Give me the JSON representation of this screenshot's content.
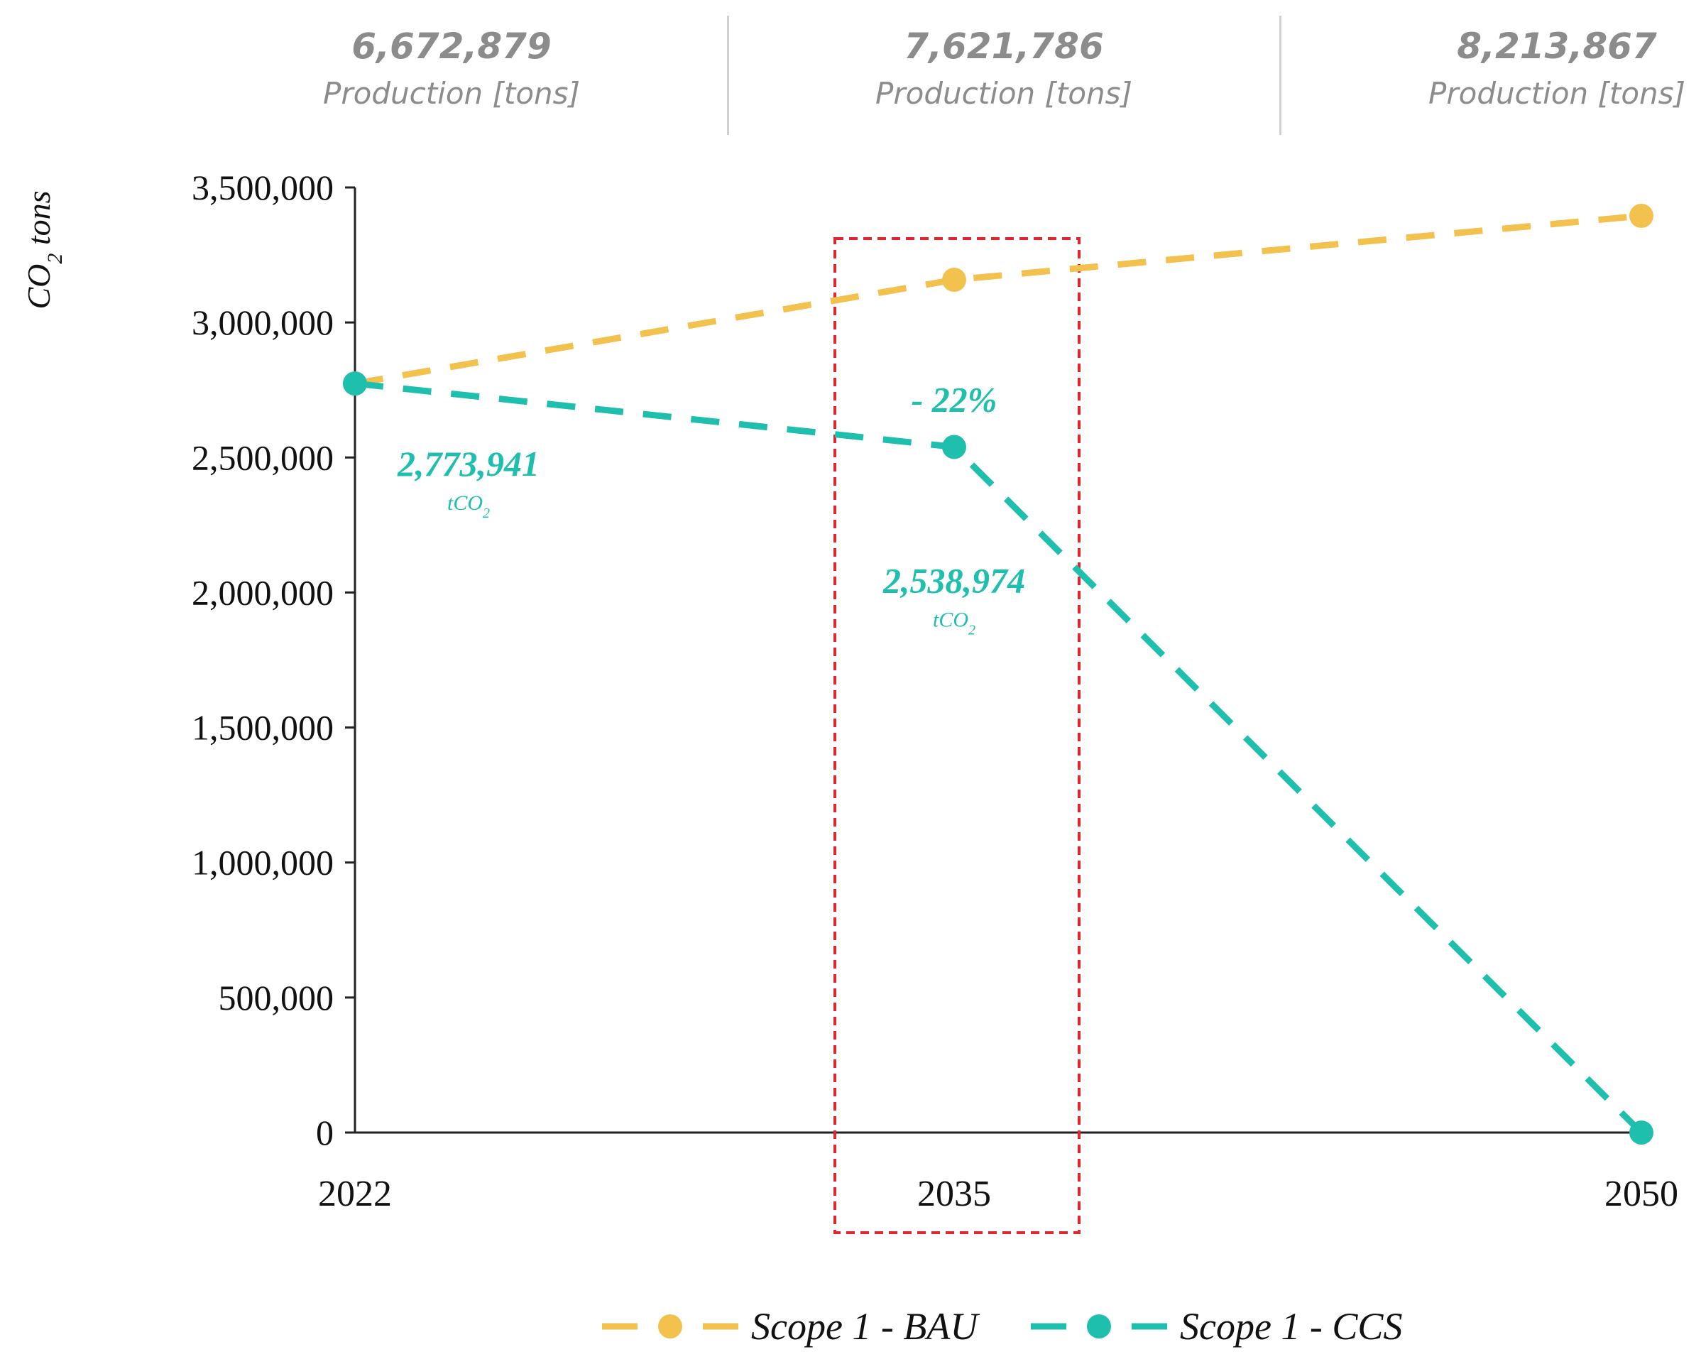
{
  "production": [
    {
      "value": "6,672,879",
      "label": "Production [tons]"
    },
    {
      "value": "7,621,786",
      "label": "Production [tons]"
    },
    {
      "value": "8,213,867",
      "label": "Production [tons]"
    }
  ],
  "chart_data": {
    "type": "line",
    "title": "",
    "ylabel": "CO",
    "ylabel_sub": "2",
    "ylabel_suffix": " tons",
    "xlabel": "",
    "categories": [
      "2022",
      "2035",
      "2050"
    ],
    "ylim": [
      0,
      3500000
    ],
    "yticks": [
      0,
      500000,
      1000000,
      1500000,
      2000000,
      2500000,
      3000000,
      3500000
    ],
    "ytick_labels": [
      "0",
      "500,000",
      "1,000,000",
      "1,500,000",
      "2,000,000",
      "2,500,000",
      "3,000,000",
      "3,500,000"
    ],
    "grid": false,
    "series": [
      {
        "name": "Scope 1 - BAU",
        "color": "#f2c14e",
        "values": [
          2773941,
          3158000,
          3395000
        ]
      },
      {
        "name": "Scope 1 - CCS",
        "color": "#1fbfae",
        "values": [
          2773941,
          2538974,
          0
        ]
      }
    ],
    "annotations": [
      {
        "category": "2022",
        "value_label": "2,773,941",
        "unit": "tCO",
        "unit_sub": "2",
        "color": "#1fbfae"
      },
      {
        "category": "2035",
        "value_label": "2,538,974",
        "unit": "tCO",
        "unit_sub": "2",
        "color": "#1fbfae"
      },
      {
        "category": "2035",
        "text": "- 22%",
        "color": "#1fbfae"
      }
    ],
    "highlight": {
      "category": "2035",
      "color": "#e0262e"
    },
    "legend_position": "bottom"
  }
}
